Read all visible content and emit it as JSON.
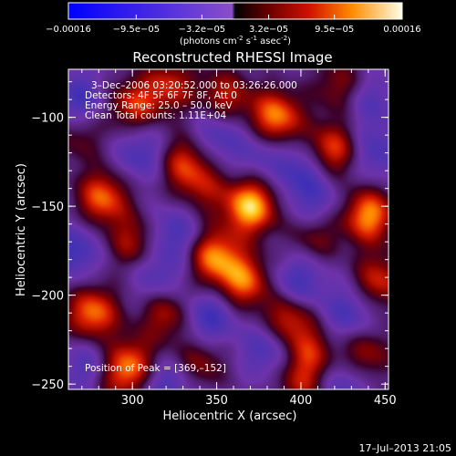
{
  "chart_data": {
    "type": "heatmap",
    "title": "Reconstructed RHESSI Image",
    "xlabel": "Heliocentric X (arcsec)",
    "ylabel": "Heliocentric Y (arcsec)",
    "xlim": [
      262,
      452
    ],
    "ylim": [
      -253,
      -73
    ],
    "x_ticks": [
      300,
      350,
      400,
      450
    ],
    "y_ticks": [
      -100,
      -150,
      -200,
      -250
    ],
    "colorbar": {
      "label": "(photons cm",
      "label_exp1": "-2",
      "label_mid": " s",
      "label_exp2": "-1",
      "label_end": " asec",
      "label_exp3": "-2",
      "label_close": ")",
      "range": [
        -0.00016,
        0.00016
      ],
      "tick_labels": [
        "−0.00016",
        "−9.5e−05",
        "−3.2e−05",
        "3.2e−05",
        "9.5e−05",
        "0.00016"
      ],
      "tick_values": [
        -0.00016,
        -9.5e-05,
        -3.2e-05,
        3.2e-05,
        9.5e-05,
        0.00016
      ]
    },
    "annotations": [
      "3–Dec–2006 03:20:52.000 to 03:26:26.000",
      "Detectors: 4F 5F 6F 7F 8F, Att 0",
      "Energy Range: 25.0 – 50.0 keV",
      "Clean    Total counts: 1.11E+04"
    ],
    "peak_label": "Position of Peak = [369,–152]",
    "peak": [
      369,
      -152
    ],
    "hotspots": [
      {
        "x": 370,
        "y": -150,
        "v": 1.0
      },
      {
        "x": 385,
        "y": -100,
        "v": 0.85
      },
      {
        "x": 348,
        "y": -178,
        "v": 0.8
      },
      {
        "x": 366,
        "y": -192,
        "v": 0.75
      },
      {
        "x": 440,
        "y": -155,
        "v": 0.85
      },
      {
        "x": 418,
        "y": -118,
        "v": 0.7
      },
      {
        "x": 282,
        "y": -145,
        "v": 0.75
      },
      {
        "x": 276,
        "y": -210,
        "v": 0.8
      },
      {
        "x": 300,
        "y": -93,
        "v": 0.6
      },
      {
        "x": 320,
        "y": -210,
        "v": 0.55
      },
      {
        "x": 330,
        "y": -125,
        "v": 0.6
      },
      {
        "x": 355,
        "y": -88,
        "v": 0.55
      },
      {
        "x": 300,
        "y": -238,
        "v": 0.55
      },
      {
        "x": 290,
        "y": -245,
        "v": 0.5
      },
      {
        "x": 340,
        "y": -237,
        "v": 0.45
      },
      {
        "x": 392,
        "y": -213,
        "v": 0.65
      },
      {
        "x": 405,
        "y": -232,
        "v": 0.5
      },
      {
        "x": 446,
        "y": -192,
        "v": 0.6
      },
      {
        "x": 438,
        "y": -233,
        "v": 0.5
      },
      {
        "x": 300,
        "y": -170,
        "v": 0.5
      },
      {
        "x": 408,
        "y": -165,
        "v": 0.45
      },
      {
        "x": 423,
        "y": -82,
        "v": 0.45
      },
      {
        "x": 268,
        "y": -110,
        "v": 0.35
      },
      {
        "x": 400,
        "y": -250,
        "v": 0.45
      },
      {
        "x": 342,
        "y": -140,
        "v": 0.4
      },
      {
        "x": 322,
        "y": -82,
        "v": 0.55
      }
    ],
    "coldspots": [
      {
        "x": 305,
        "y": -120,
        "v": -0.45
      },
      {
        "x": 265,
        "y": -175,
        "v": -0.5
      },
      {
        "x": 325,
        "y": -165,
        "v": -0.45
      },
      {
        "x": 315,
        "y": -190,
        "v": -0.4
      },
      {
        "x": 345,
        "y": -213,
        "v": -0.55
      },
      {
        "x": 398,
        "y": -193,
        "v": -0.5
      },
      {
        "x": 428,
        "y": -210,
        "v": -0.45
      },
      {
        "x": 400,
        "y": -130,
        "v": -0.45
      },
      {
        "x": 408,
        "y": -150,
        "v": -0.4
      },
      {
        "x": 275,
        "y": -240,
        "v": -0.45
      },
      {
        "x": 380,
        "y": -230,
        "v": -0.45
      },
      {
        "x": 445,
        "y": -120,
        "v": -0.4
      },
      {
        "x": 350,
        "y": -110,
        "v": -0.4
      },
      {
        "x": 268,
        "y": -90,
        "v": -0.5
      },
      {
        "x": 320,
        "y": -250,
        "v": -0.45
      },
      {
        "x": 425,
        "y": -250,
        "v": -0.4
      },
      {
        "x": 375,
        "y": -120,
        "v": -0.3
      },
      {
        "x": 440,
        "y": -90,
        "v": -0.35
      }
    ]
  },
  "timestamp": "17–Jul–2013 21:05"
}
